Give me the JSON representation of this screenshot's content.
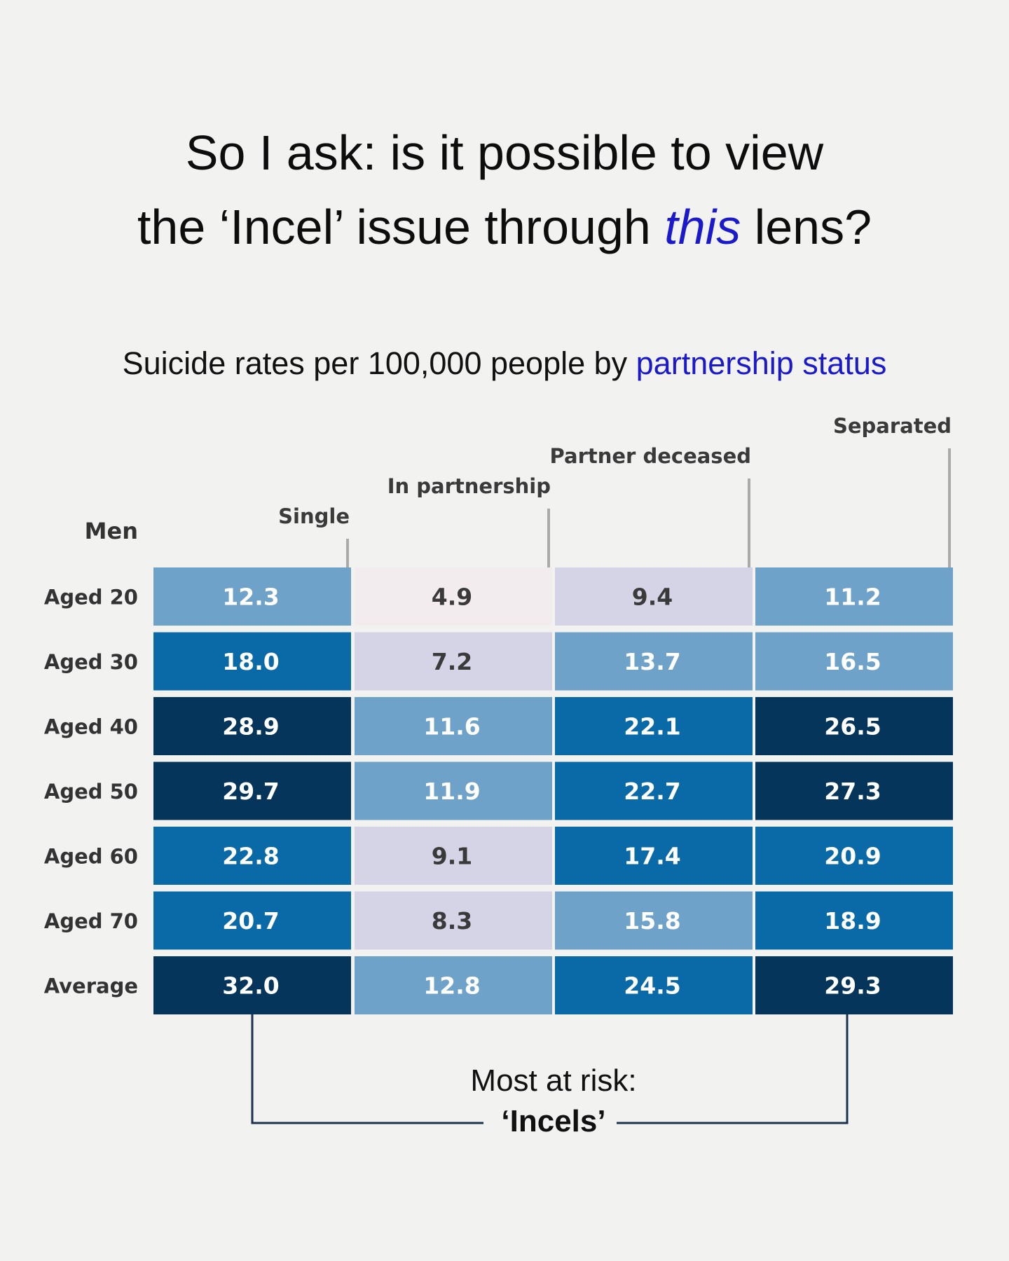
{
  "title": {
    "line1": "So I ask: is it possible to view",
    "line2_pre": "the ‘Incel’ issue through ",
    "line2_em": "this",
    "line2_post": " lens?"
  },
  "subtitle": {
    "pre": "Suicide rates per 100,000 people by ",
    "highlight": "partnership status"
  },
  "chart_data": {
    "type": "heatmap",
    "row_header": "Men",
    "columns": [
      "Single",
      "In partnership",
      "Partner deceased",
      "Separated"
    ],
    "rows": [
      "Aged 20",
      "Aged 30",
      "Aged 40",
      "Aged 50",
      "Aged 60",
      "Aged 70",
      "Average"
    ],
    "values": [
      [
        12.3,
        4.9,
        9.4,
        11.2
      ],
      [
        18.0,
        7.2,
        13.7,
        16.5
      ],
      [
        28.9,
        11.6,
        22.1,
        26.5
      ],
      [
        29.7,
        11.9,
        22.7,
        27.3
      ],
      [
        22.8,
        9.1,
        17.4,
        20.9
      ],
      [
        20.7,
        8.3,
        15.8,
        18.9
      ],
      [
        32.0,
        12.8,
        24.5,
        29.3
      ]
    ],
    "color_scale": [
      "#f3ecef",
      "#d5d3e6",
      "#6fa2c9",
      "#0a6aa8",
      "#05355a"
    ]
  },
  "annotation": {
    "line1": "Most at risk:",
    "line2": "‘Incels’"
  }
}
